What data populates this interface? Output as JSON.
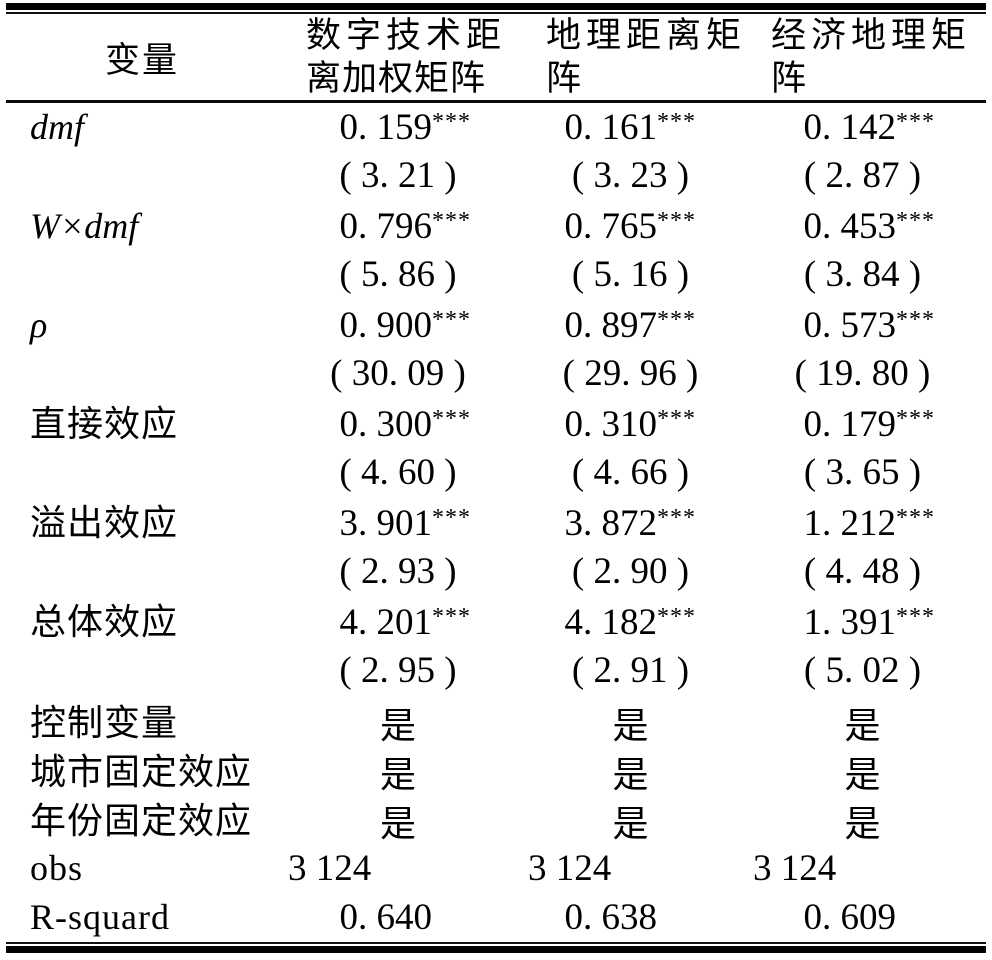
{
  "table": {
    "header": {
      "variable_label": "变量",
      "cols": [
        {
          "label": "数字技术距离加权矩阵",
          "lines": [
            "数字技术距",
            "离加权矩阵"
          ]
        },
        {
          "label": "地理距离矩阵",
          "lines": [
            "地理距离矩",
            "阵"
          ]
        },
        {
          "label": "经济地理矩阵",
          "lines": [
            "经济地理矩",
            "阵"
          ]
        }
      ]
    },
    "coef_rows": [
      {
        "label": "dmf",
        "values": [
          "0. 159",
          "0. 161",
          "0. 142"
        ],
        "stars": [
          "***",
          "***",
          "***"
        ],
        "tvals": [
          "( 3. 21 )",
          "( 3. 23 )",
          "( 2. 87 )"
        ]
      },
      {
        "label": "W×dmf",
        "values": [
          "0. 796",
          "0. 765",
          "0. 453"
        ],
        "stars": [
          "***",
          "***",
          "***"
        ],
        "tvals": [
          "( 5. 86 )",
          "( 5. 16 )",
          "( 3. 84 )"
        ]
      },
      {
        "label": "ρ",
        "values": [
          "0. 900",
          "0. 897",
          "0. 573"
        ],
        "stars": [
          "***",
          "***",
          "***"
        ],
        "tvals": [
          "( 30. 09 )",
          "( 29. 96 )",
          "( 19. 80 )"
        ]
      },
      {
        "label": "直接效应",
        "values": [
          "0. 300",
          "0. 310",
          "0. 179"
        ],
        "stars": [
          "***",
          "***",
          "***"
        ],
        "tvals": [
          "( 4. 60 )",
          "( 4. 66 )",
          "( 3. 65 )"
        ]
      },
      {
        "label": "溢出效应",
        "values": [
          "3. 901",
          "3. 872",
          "1. 212"
        ],
        "stars": [
          "***",
          "***",
          "***"
        ],
        "tvals": [
          "( 2. 93 )",
          "( 2. 90 )",
          "( 4. 48 )"
        ]
      },
      {
        "label": "总体效应",
        "values": [
          "4. 201",
          "4. 182",
          "1. 391"
        ],
        "stars": [
          "***",
          "***",
          "***"
        ],
        "tvals": [
          "( 2. 95 )",
          "( 2. 91 )",
          "( 5. 02 )"
        ]
      }
    ],
    "yes_rows": [
      {
        "label": "控制变量",
        "values": [
          "是",
          "是",
          "是"
        ]
      },
      {
        "label": "城市固定效应",
        "values": [
          "是",
          "是",
          "是"
        ]
      },
      {
        "label": "年份固定效应",
        "values": [
          "是",
          "是",
          "是"
        ]
      }
    ],
    "obs_row": {
      "label": "obs",
      "values": [
        "3 124",
        "3 124",
        "3 124"
      ]
    },
    "rsq_row": {
      "label": "R-squard",
      "values": [
        "0. 640",
        "0. 638",
        "0. 609"
      ]
    }
  }
}
